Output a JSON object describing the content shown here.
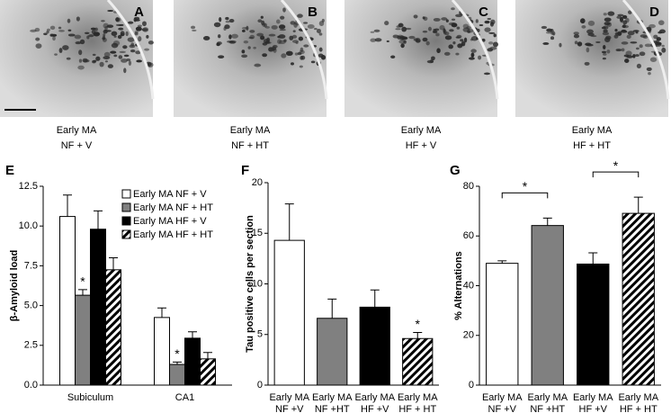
{
  "images": [
    {
      "label": "A",
      "caption": [
        "Early MA",
        "NF + V"
      ]
    },
    {
      "label": "B",
      "caption": [
        "Early MA",
        "NF + HT"
      ]
    },
    {
      "label": "C",
      "caption": [
        "Early MA",
        "HF + V"
      ]
    },
    {
      "label": "D",
      "caption": [
        "Early MA",
        "HF + HT"
      ]
    }
  ],
  "chart_data": [
    {
      "type": "bar",
      "panel": "E",
      "ylabel": "β-Amyloid load",
      "categories": [
        [
          "Subiculum"
        ],
        [
          "CA1"
        ]
      ],
      "series": [
        {
          "name": "Early MA NF + V",
          "color": "#ffffff",
          "hatch": false,
          "values": [
            10.6,
            4.25
          ],
          "errors": [
            1.35,
            0.6
          ]
        },
        {
          "name": "Early MA NF + HT",
          "color": "#808080",
          "hatch": false,
          "values": [
            5.65,
            1.3
          ],
          "errors": [
            0.35,
            0.15
          ]
        },
        {
          "name": "Early MA HF + V",
          "color": "#000000",
          "hatch": false,
          "values": [
            9.8,
            2.95
          ],
          "errors": [
            1.15,
            0.4
          ]
        },
        {
          "name": "Early MA HF + HT",
          "color": "#ffffff",
          "hatch": true,
          "values": [
            7.25,
            1.65
          ],
          "errors": [
            0.75,
            0.4
          ]
        }
      ],
      "ylim": [
        0,
        12.5
      ],
      "yticks": [
        {
          "value": 0,
          "label": "0.0"
        },
        2.5,
        {
          "value": 5,
          "label": "5.0"
        },
        7.5,
        {
          "value": 10,
          "label": "10.0"
        },
        12.5
      ],
      "annotations": [
        {
          "text": "*",
          "series": 1,
          "category": 0
        },
        {
          "text": "*",
          "series": 1,
          "category": 1
        }
      ],
      "legend": "top-right"
    },
    {
      "type": "bar",
      "panel": "F",
      "ylabel": "Tau positive cells per section",
      "categories": [
        [
          "Early MA",
          "NF +V"
        ],
        [
          "Early MA",
          "NF +HT"
        ],
        [
          "Early MA",
          "HF +V"
        ],
        [
          "Early MA",
          "HF + HT"
        ]
      ],
      "values": [
        14.3,
        6.6,
        7.7,
        4.6
      ],
      "errors": [
        3.6,
        1.9,
        1.7,
        0.6
      ],
      "colors": [
        "#ffffff",
        "#808080",
        "#000000",
        "#ffffff"
      ],
      "hatch": [
        false,
        false,
        false,
        true
      ],
      "ylim": [
        0,
        20
      ],
      "yticks": [
        0,
        5,
        10,
        15,
        20
      ],
      "annotations": [
        {
          "text": "*",
          "category": 3
        }
      ]
    },
    {
      "type": "bar",
      "panel": "G",
      "ylabel": "% Alternations",
      "categories": [
        [
          "Early MA",
          "NF +V"
        ],
        [
          "Early MA",
          "NF +HT"
        ],
        [
          "Early MA",
          "HF +V"
        ],
        [
          "Early MA",
          "HF + HT"
        ]
      ],
      "values": [
        49,
        64.2,
        48.7,
        69.1
      ],
      "errors": [
        1,
        3,
        4.5,
        6.5
      ],
      "colors": [
        "#ffffff",
        "#808080",
        "#000000",
        "#ffffff"
      ],
      "hatch": [
        false,
        false,
        false,
        true
      ],
      "ylim": [
        0,
        80
      ],
      "yticks": [
        0,
        20,
        40,
        60,
        80
      ],
      "annotations": [
        {
          "text": "*",
          "from": 0,
          "to": 1
        },
        {
          "text": "*",
          "from": 2,
          "to": 3
        }
      ]
    }
  ]
}
